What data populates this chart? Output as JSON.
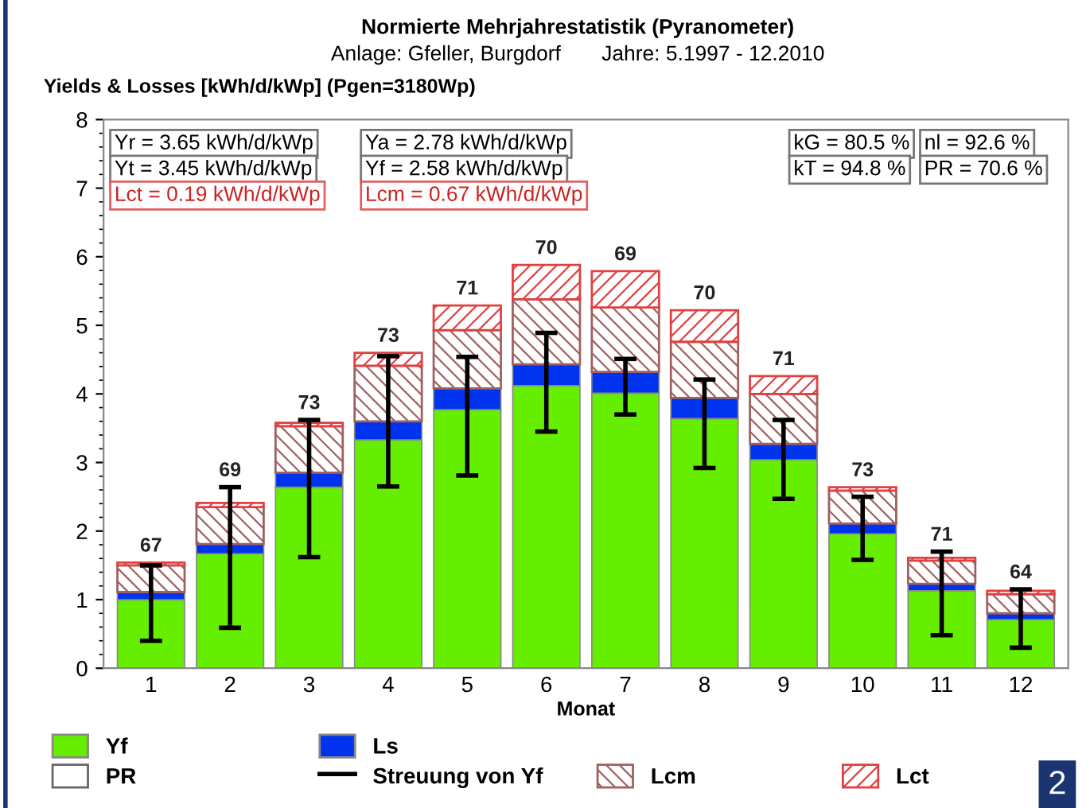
{
  "chart_data": {
    "type": "bar",
    "stacked": true,
    "title": "Normierte Mehrjahrestatistik (Pyranometer)",
    "subtitle": "Anlage: Gfeller, Burgdorf       Jahre: 5.1997 - 12.2010",
    "ylabel": "Yields & Losses [kWh/d/kWp] (Pgen=3180Wp)",
    "xlabel": "Monat",
    "categories": [
      "1",
      "2",
      "3",
      "4",
      "5",
      "6",
      "7",
      "8",
      "9",
      "10",
      "11",
      "12"
    ],
    "series": [
      {
        "name": "Yf",
        "color": "#66ee00",
        "values": [
          1.0,
          1.67,
          2.64,
          3.33,
          3.77,
          4.12,
          4.01,
          3.64,
          3.04,
          1.96,
          1.13,
          0.71
        ],
        "errors": [
          [
            0.4,
            1.5
          ],
          [
            0.59,
            2.64
          ],
          [
            1.62,
            3.62
          ],
          [
            2.65,
            4.55
          ],
          [
            2.81,
            4.54
          ],
          [
            3.45,
            4.89
          ],
          [
            3.7,
            4.51
          ],
          [
            2.92,
            4.21
          ],
          [
            2.47,
            3.62
          ],
          [
            1.58,
            2.5
          ],
          [
            0.48,
            1.7
          ],
          [
            0.3,
            1.15
          ]
        ]
      },
      {
        "name": "Ls",
        "color": "#0033ee",
        "values": [
          0.11,
          0.14,
          0.21,
          0.27,
          0.31,
          0.31,
          0.31,
          0.3,
          0.23,
          0.15,
          0.1,
          0.09
        ]
      },
      {
        "name": "Lcm",
        "color": "#a06060",
        "values": [
          0.39,
          0.54,
          0.68,
          0.81,
          0.85,
          0.95,
          0.94,
          0.82,
          0.73,
          0.48,
          0.34,
          0.28
        ]
      },
      {
        "name": "Lct",
        "color": "#e04040",
        "values": [
          0.04,
          0.06,
          0.05,
          0.19,
          0.36,
          0.5,
          0.53,
          0.46,
          0.26,
          0.05,
          0.04,
          0.05
        ]
      },
      {
        "name": "PR",
        "type": "other",
        "color": "#ffffff",
        "values": [
          null,
          null,
          null,
          null,
          null,
          null,
          null,
          null,
          null,
          null,
          null,
          null
        ]
      },
      {
        "name": "Streuung von Yf",
        "type": "other",
        "color": "#000000",
        "values": [
          null,
          null,
          null,
          null,
          null,
          null,
          null,
          null,
          null,
          null,
          null,
          null
        ]
      }
    ],
    "ylim": [
      0,
      8
    ],
    "yticks": [
      0,
      1,
      2,
      3,
      4,
      5,
      6,
      7,
      8
    ],
    "legend": "bottom",
    "annotations": [
      "Yr = 3.65 kWh/d/kWp",
      "Ya = 2.78 kWh/d/kWp",
      "Yt = 3.45 kWh/d/kWp",
      "Yf = 2.58 kWh/d/kWp",
      "Lct = 0.19 kWh/d/kWp",
      "Lcm = 0.67 kWh/d/kWp",
      "kG = 80.5 %",
      "nl = 92.6 %",
      "kT = 94.8 %",
      "PR = 70.6 %",
      "2",
      {
        "text": "67",
        "x": "1",
        "y": 1.54
      },
      {
        "text": "69",
        "x": "2",
        "y": 2.41
      },
      {
        "text": "73",
        "x": "3",
        "y": 3.58
      },
      {
        "text": "73",
        "x": "4",
        "y": 4.6
      },
      {
        "text": "71",
        "x": "5",
        "y": 5.29
      },
      {
        "text": "70",
        "x": "6",
        "y": 5.88
      },
      {
        "text": "69",
        "x": "7",
        "y": 5.79
      },
      {
        "text": "70",
        "x": "8",
        "y": 5.22
      },
      {
        "text": "71",
        "x": "9",
        "y": 4.26
      },
      {
        "text": "73",
        "x": "10",
        "y": 2.64
      },
      {
        "text": "71",
        "x": "11",
        "y": 1.61
      },
      {
        "text": "64",
        "x": "12",
        "y": 1.13
      }
    ]
  }
}
